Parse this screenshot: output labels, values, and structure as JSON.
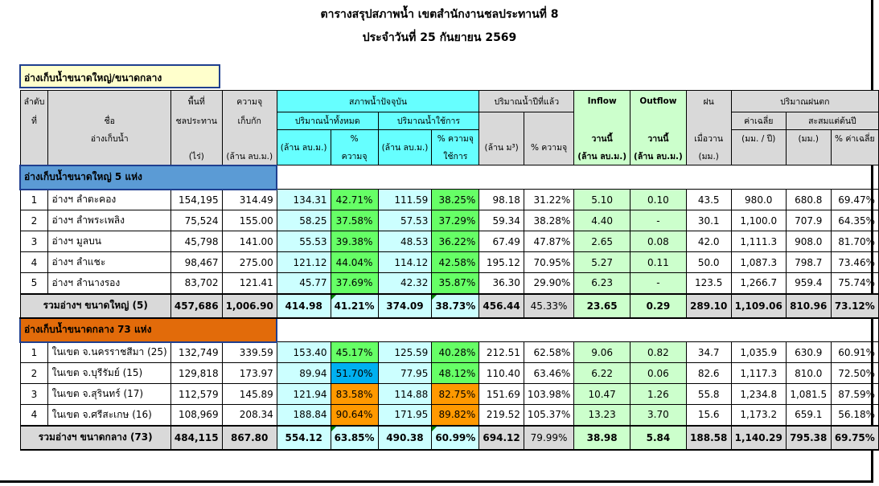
{
  "title": "ตารางสรุปสภาพน้ำ เขตสำนักงานชลประทานที่ 8",
  "subtitle": "ประจำวันที่ 25 กันยายน 2569",
  "caption": "อ่างเก็บน้ำขนาดใหญ่/ขนาดกลาง",
  "headers": {
    "no_1": "ลำดับ",
    "no_2": "ที่",
    "name_1": "ชื่อ",
    "name_2": "อ่างเก็บน้ำ",
    "area_1": "พื้นที่",
    "area_2": "ชลประทาน",
    "area_3": "(ไร่)",
    "cap_1": "ความจุ",
    "cap_2": "เก็บกัก",
    "cap_3": "(ล้าน ลบ.ม.)",
    "current": "สภาพน้ำปัจจุบัน",
    "total": "ปริมาณน้ำทั้งหมด",
    "usable": "ปริมาณน้ำใช้การ",
    "unit_mcm": "(ล้าน ลบ.ม.)",
    "pct_1": "%",
    "pct_2": "ความจุ",
    "pct_use_1": "% ความจุ",
    "pct_use_2": "ใช้การ",
    "last_year": "ปริมาณน้ำปีที่แล้ว",
    "ly_unit": "(ล้าน ม³)",
    "ly_pct": "% ความจุ",
    "inflow": "Inflow",
    "outflow": "Outflow",
    "today": "วานนี้",
    "flow_unit": "(ล้าน ลบ.ม.)",
    "rain": "ฝน",
    "rain_yday": "เมื่อวาน",
    "rain_unit": "(มม.)",
    "rainfall": "ปริมาณฝนตก",
    "avg": "ค่าเฉลี่ย",
    "avg_unit": "(มม. / ปี)",
    "accum": "สะสมแต่ต้นปี",
    "accum_unit": "(มม.)",
    "pct_avg": "% ค่าเฉลี่ย"
  },
  "section_large": "อ่างเก็บน้ำขนาดใหญ่ 5 แห่ง",
  "section_medium": "อ่างเก็บน้ำขนาดกลาง 73 แห่ง",
  "large_rows": [
    [
      "1",
      "อ่างฯ ลำตะคอง",
      "154,195",
      "314.49",
      "134.31",
      "42.71%",
      "111.59",
      "38.25%",
      "98.18",
      "31.22%",
      "5.10",
      "0.10",
      "43.5",
      "980.0",
      "680.8",
      "69.47%"
    ],
    [
      "2",
      "อ่างฯ ลำพระเพลิง",
      "75,524",
      "155.00",
      "58.25",
      "37.58%",
      "57.53",
      "37.29%",
      "59.34",
      "38.28%",
      "4.40",
      "-",
      "30.1",
      "1,100.0",
      "707.9",
      "64.35%"
    ],
    [
      "3",
      "อ่างฯ มูลบน",
      "45,798",
      "141.00",
      "55.53",
      "39.38%",
      "48.53",
      "36.22%",
      "67.49",
      "47.87%",
      "2.65",
      "0.08",
      "42.0",
      "1,111.3",
      "908.0",
      "81.70%"
    ],
    [
      "4",
      "อ่างฯ ลำแชะ",
      "98,467",
      "275.00",
      "121.12",
      "44.04%",
      "114.12",
      "42.58%",
      "195.12",
      "70.95%",
      "5.27",
      "0.11",
      "50.0",
      "1,087.3",
      "798.7",
      "73.46%"
    ],
    [
      "5",
      "อ่างฯ ลำนางรอง",
      "83,702",
      "121.41",
      "45.77",
      "37.69%",
      "42.32",
      "35.87%",
      "36.30",
      "29.90%",
      "6.23",
      "-",
      "123.5",
      "1,266.7",
      "959.4",
      "75.74%"
    ]
  ],
  "large_total": [
    "รวมอ่างฯ ขนาดใหญ่ (5)",
    "457,686",
    "1,006.90",
    "414.98",
    "41.21%",
    "374.09",
    "38.73%",
    "456.44",
    "45.33%",
    "23.65",
    "0.29",
    "289.10",
    "1,109.06",
    "810.96",
    "73.12%"
  ],
  "medium_rows": [
    [
      "1",
      "ในเขต จ.นครราชสีมา (25)",
      "132,749",
      "339.59",
      "153.40",
      "45.17%",
      "125.59",
      "40.28%",
      "212.51",
      "62.58%",
      "9.06",
      "0.82",
      "34.7",
      "1,035.9",
      "630.9",
      "60.91%"
    ],
    [
      "2",
      "ในเขต จ.บุรีรัมย์ (15)",
      "129,818",
      "173.97",
      "89.94",
      "51.70%",
      "77.95",
      "48.12%",
      "110.40",
      "63.46%",
      "6.22",
      "0.06",
      "82.6",
      "1,117.3",
      "810.0",
      "72.50%"
    ],
    [
      "3",
      "ในเขต จ.สุรินทร์ (17)",
      "112,579",
      "145.89",
      "121.94",
      "83.58%",
      "114.88",
      "82.75%",
      "151.69",
      "103.98%",
      "10.47",
      "1.26",
      "55.8",
      "1,234.8",
      "1,081.5",
      "87.59%"
    ],
    [
      "4",
      "ในเขต จ.ศรีสะเกษ (16)",
      "108,969",
      "208.34",
      "188.84",
      "90.64%",
      "171.95",
      "89.82%",
      "219.52",
      "105.37%",
      "13.23",
      "3.70",
      "15.6",
      "1,173.2",
      "659.1",
      "56.18%"
    ]
  ],
  "medium_total": [
    "รวมอ่างฯ ขนาดกลาง (73)",
    "484,115",
    "867.80",
    "554.12",
    "63.85%",
    "490.38",
    "60.99%",
    "694.12",
    "79.99%",
    "38.98",
    "5.84",
    "188.58",
    "1,140.29",
    "795.38",
    "69.75%"
  ],
  "colors": {
    "header_grey": "#d9d9d9",
    "header_cyan": "#66ffff",
    "cell_cyan": "#ccffff",
    "pct_green": "#66ff66",
    "flow_green": "#ccffcc",
    "pct_orange": "#ff9900",
    "pct_blue": "#00b0f0",
    "section_blue": "#5b9bd5",
    "section_orange": "#e26b0a",
    "caption_yellow": "#ffffcc"
  }
}
